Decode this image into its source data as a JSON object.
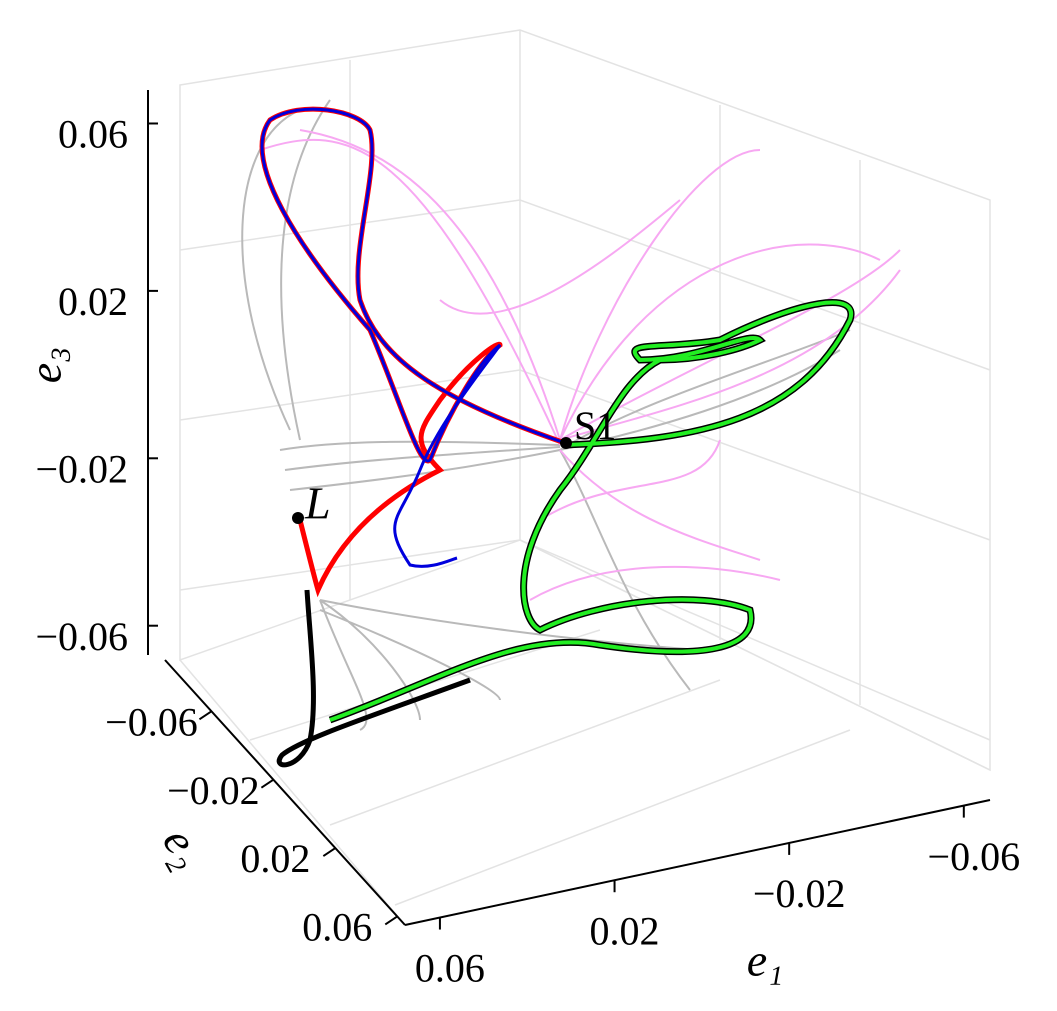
{
  "chart_data": {
    "type": "line3d",
    "xlabel": "e₁",
    "ylabel": "e₂",
    "zlabel": "e₃",
    "xlim": [
      0.068,
      -0.066
    ],
    "xticks": [
      0.06,
      0.02,
      {
        "value": -0.02,
        "label": "−0.02"
      },
      {
        "value": -0.06,
        "label": "−0.06"
      }
    ],
    "ylim": [
      -0.09,
      0.065
    ],
    "yticks": [
      {
        "value": -0.06,
        "label": "−0.06"
      },
      {
        "value": -0.02,
        "label": "−0.02"
      },
      0.02,
      0.06
    ],
    "zlim": [
      -0.067,
      0.068
    ],
    "zticks": [
      {
        "value": -0.06,
        "label": "−0.06"
      },
      {
        "value": -0.02,
        "label": "−0.02"
      },
      0.02,
      0.06
    ],
    "annotations": [
      "L",
      "S1"
    ],
    "grid": true
  }
}
